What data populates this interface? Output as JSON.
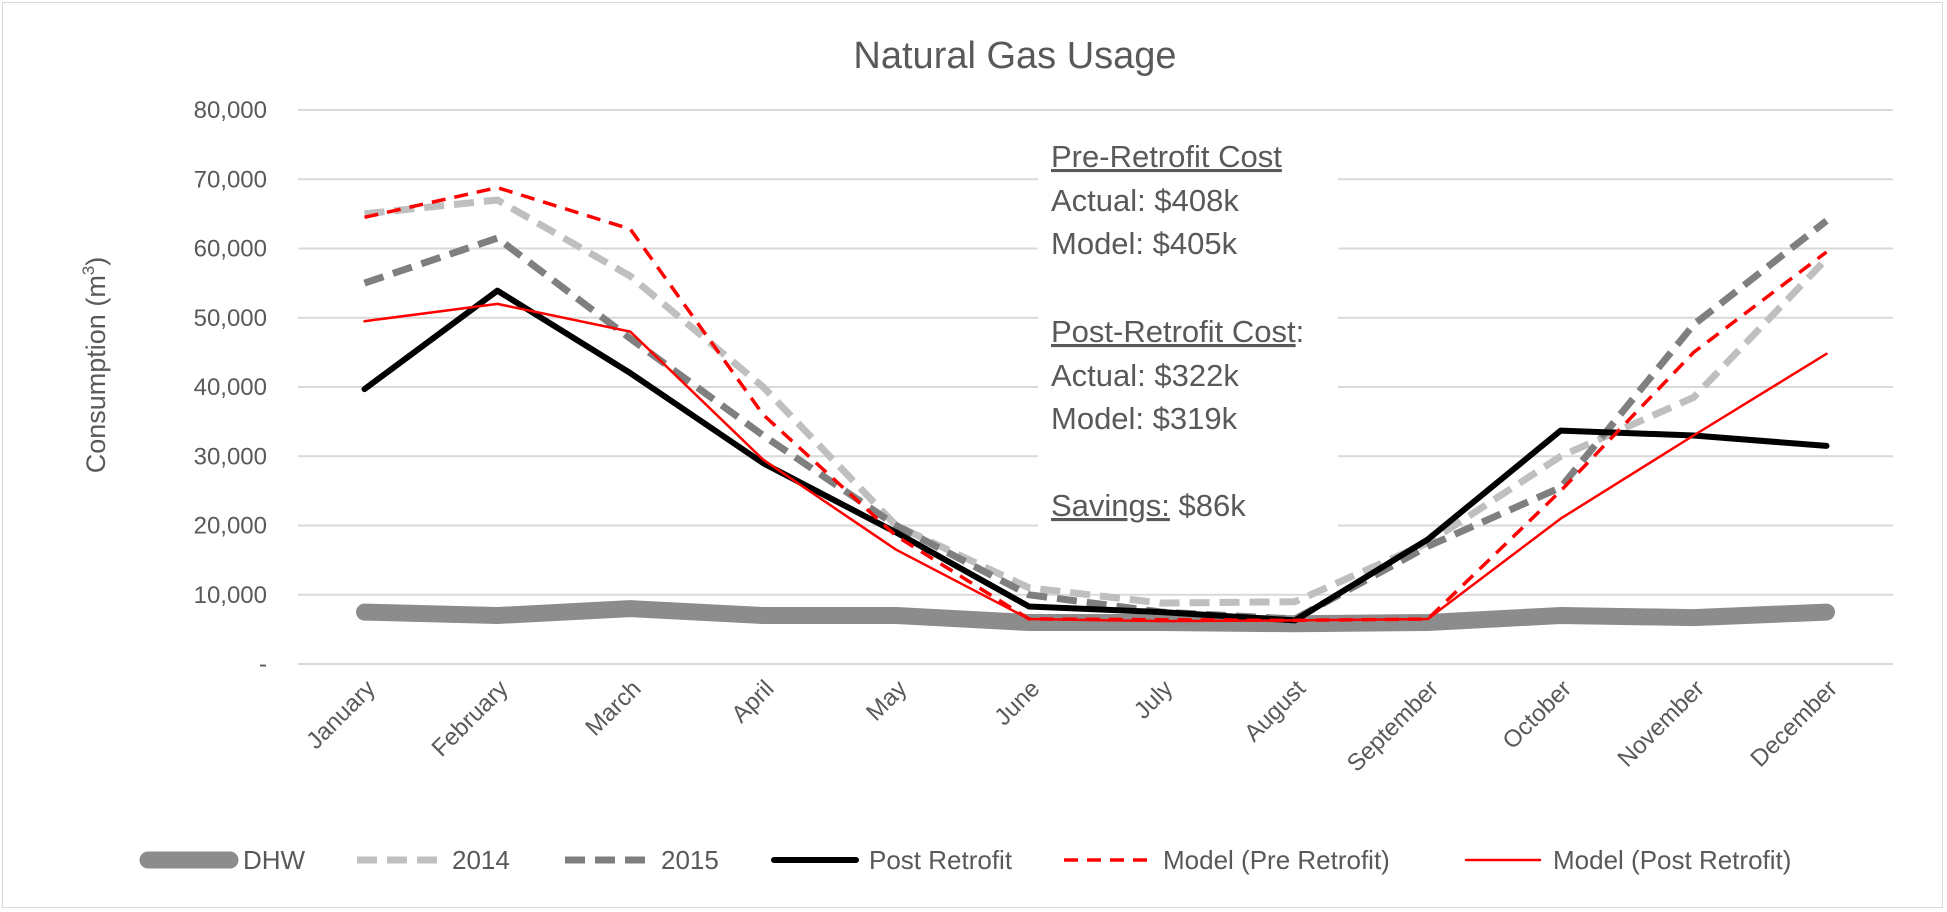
{
  "chart_data": {
    "type": "line",
    "title": "Natural Gas Usage",
    "ylabel": "Consumption (m",
    "ylabel_sup": "3",
    "ylabel_close": ")",
    "xlabel": "",
    "ylim": [
      0,
      80000
    ],
    "yticks": [
      0,
      10000,
      20000,
      30000,
      40000,
      50000,
      60000,
      70000,
      80000
    ],
    "ytick_labels": [
      "-",
      "10,000",
      "20,000",
      "30,000",
      "40,000",
      "50,000",
      "60,000",
      "70,000",
      "80,000"
    ],
    "grid": true,
    "legend_position": "bottom",
    "categories": [
      "January",
      "February",
      "March",
      "April",
      "May",
      "June",
      "July",
      "August",
      "September",
      "October",
      "November",
      "December"
    ],
    "series": [
      {
        "name": "DHW",
        "color": "#8c8c8c",
        "style": "thick",
        "values": [
          7500,
          7000,
          8000,
          7000,
          7000,
          6000,
          6000,
          5800,
          6000,
          7000,
          6700,
          7500
        ]
      },
      {
        "name": "2014",
        "color": "#bfbfbf",
        "style": "dashed",
        "values": [
          65000,
          67000,
          56000,
          40000,
          20000,
          11000,
          8800,
          9000,
          17500,
          30000,
          38500,
          58500
        ]
      },
      {
        "name": "2015",
        "color": "#7f7f7f",
        "style": "dashed",
        "values": [
          55000,
          61500,
          47000,
          33000,
          20000,
          10000,
          7500,
          6500,
          17000,
          25500,
          49000,
          64000
        ]
      },
      {
        "name": "Post Retrofit",
        "color": "#000000",
        "style": "solid-bold",
        "values": [
          39700,
          53900,
          42000,
          29000,
          19000,
          8300,
          7500,
          6300,
          18000,
          33700,
          33000,
          31500
        ]
      },
      {
        "name": "Model (Pre Retrofit)",
        "color": "#ff0000",
        "style": "dashed-red",
        "values": [
          64500,
          68800,
          62800,
          36000,
          18500,
          6500,
          6400,
          6300,
          6500,
          25000,
          45000,
          59500
        ]
      },
      {
        "name": "Model (Post Retrofit)",
        "color": "#ff0000",
        "style": "thin",
        "values": [
          49500,
          52000,
          48000,
          29500,
          16500,
          6500,
          6200,
          6300,
          6500,
          21000,
          33000,
          44800
        ]
      }
    ],
    "annotations": {
      "pre_heading": "Pre-Retrofit Cost",
      "pre_actual": "Actual: $408k",
      "pre_model": "Model: $405k",
      "post_heading": "Post-Retrofit Cost",
      "post_colon": ":",
      "post_actual": "Actual: $322k",
      "post_model": "Model: $319k",
      "savings_label": "Savings:",
      "savings_value": " $86k"
    }
  }
}
